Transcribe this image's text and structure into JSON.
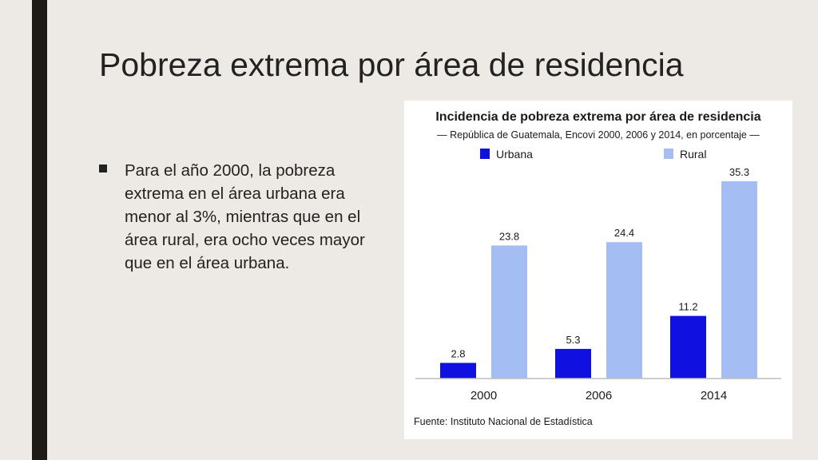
{
  "slide": {
    "title": "Pobreza extrema por área de residencia",
    "bullet": "Para el año 2000, la pobreza extrema en el área urbana era menor al 3%, mientras que en el área rural, era ocho veces mayor que en el área urbana."
  },
  "chart_data": {
    "type": "bar",
    "title": "Incidencia de pobreza extrema por área de residencia",
    "subtitle": "— República de Guatemala, Encovi 2000, 2006 y 2014, en porcentaje —",
    "categories": [
      "2000",
      "2006",
      "2014"
    ],
    "series": [
      {
        "name": "Urbana",
        "values": [
          2.8,
          5.3,
          11.2
        ],
        "color": "#1010e0"
      },
      {
        "name": "Rural",
        "values": [
          23.8,
          24.4,
          35.3
        ],
        "color": "#a4bdf2"
      }
    ],
    "ylim": [
      0,
      40
    ],
    "grid": false,
    "legend": "top",
    "xlabel": "",
    "ylabel": "",
    "source": "Fuente: Instituto Nacional de Estadística"
  }
}
